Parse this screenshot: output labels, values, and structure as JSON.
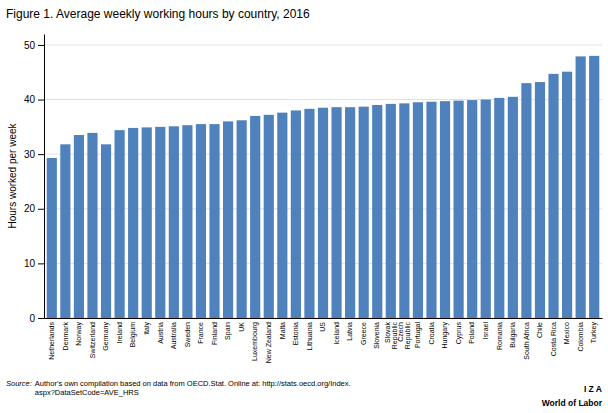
{
  "chart_data": {
    "type": "bar",
    "title": "Figure 1. Average weekly working hours by country, 2016",
    "ylabel": "Hours worked per week",
    "categories": [
      "Netherlands",
      "Denmark",
      "Norway",
      "Switzerland",
      "Germany",
      "Ireland",
      "Belgium",
      "Italy",
      "Austria",
      "Australia",
      "Sweden",
      "France",
      "Finland",
      "Spain",
      "UK",
      "Luxembourg",
      "New Zealand",
      "Malta",
      "Estonia",
      "Lithuania",
      "US",
      "Iceland",
      "Latvia",
      "Greece",
      "Slovenia",
      "Slovak\nRepublic",
      "Czech\nRepublic",
      "Portugal",
      "Croatia",
      "Hungary",
      "Cyprus",
      "Poland",
      "Israel",
      "Romania",
      "Bulgaria",
      "South Africa",
      "Chile",
      "Costa Rica",
      "Mexico",
      "Colombia",
      "Turkey"
    ],
    "values": [
      29.3,
      31.8,
      33.5,
      33.9,
      31.8,
      34.4,
      34.8,
      34.9,
      35.0,
      35.1,
      35.3,
      35.5,
      35.5,
      36.0,
      36.2,
      37.0,
      37.2,
      37.6,
      38.0,
      38.3,
      38.5,
      38.6,
      38.6,
      38.7,
      39.0,
      39.2,
      39.3,
      39.5,
      39.6,
      39.7,
      39.8,
      39.9,
      40.0,
      40.3,
      40.5,
      43.0,
      43.2,
      44.7,
      45.1,
      47.9,
      48.0
    ],
    "color": "#4f81bd",
    "ylim": [
      0,
      52
    ],
    "yticks": [
      0,
      10,
      20,
      30,
      40,
      50
    ],
    "grid": true,
    "annotations": [
      "Source:",
      " Author's own compilation based on data from OECD.Stat. Online at: http://stats.oecd.org/Index.\naspx?DataSetCode=AVE_HRS",
      "I Z A",
      "World of Labor"
    ]
  }
}
